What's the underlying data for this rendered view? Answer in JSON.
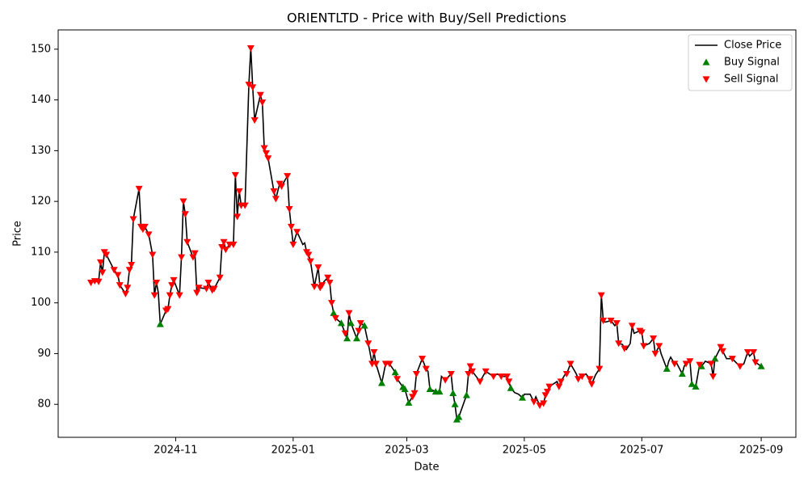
{
  "chart_data": {
    "type": "line",
    "title": "ORIENTLTD - Price with Buy/Sell Predictions",
    "x_label": "Date",
    "y_label": "Price",
    "xlim": [
      19967,
      20350
    ],
    "xticks": [
      {
        "value": 20028,
        "label": "2024-11"
      },
      {
        "value": 20089,
        "label": "2025-01"
      },
      {
        "value": 20148,
        "label": "2025-03"
      },
      {
        "value": 20209,
        "label": "2025-05"
      },
      {
        "value": 20270,
        "label": "2025-07"
      },
      {
        "value": 20332,
        "label": "2025-09"
      }
    ],
    "ylim": [
      73.5,
      153.8
    ],
    "yticks": [
      80,
      90,
      100,
      110,
      120,
      130,
      140,
      150
    ],
    "grid": false,
    "legend": "upper right",
    "series": [
      {
        "name": "Close Price",
        "type": "line",
        "color": "#000000",
        "x": [
          19984,
          19986,
          19988,
          19989,
          19990,
          19991,
          19992,
          19996,
          19998,
          19999,
          20002,
          20003,
          20004,
          20005,
          20006,
          20009,
          20010,
          20011,
          20012,
          20014,
          20016,
          20017,
          20018,
          20019,
          20020,
          20023,
          20024,
          20025,
          20026,
          20027,
          20030,
          20031,
          20032,
          20033,
          20034,
          20037,
          20038,
          20039,
          20040,
          20044,
          20045,
          20047,
          20048,
          20051,
          20052,
          20053,
          20054,
          20056,
          20057,
          20058,
          20059,
          20060,
          20061,
          20062,
          20064,
          20066,
          20067,
          20068,
          20069,
          20072,
          20073,
          20074,
          20075,
          20076,
          20079,
          20080,
          20082,
          20083,
          20086,
          20087,
          20088,
          20089,
          20091,
          20094,
          20095,
          20096,
          20097,
          20098,
          20100,
          20102,
          20103,
          20104,
          20105,
          20107,
          20108,
          20109,
          20110,
          20111,
          20114,
          20116,
          20117,
          20118,
          20119,
          20122,
          20123,
          20124,
          20126,
          20128,
          20130,
          20131,
          20132,
          20135,
          20137,
          20139,
          20142,
          20143,
          20146,
          20147,
          20149,
          20151,
          20152,
          20153,
          20156,
          20158,
          20159,
          20160,
          20163,
          20165,
          20166,
          20168,
          20171,
          20172,
          20173,
          20174,
          20175,
          20179,
          20180,
          20181,
          20182,
          20185,
          20186,
          20189,
          20193,
          20195,
          20197,
          20200,
          20201,
          20202,
          20204,
          20206,
          20208,
          20209,
          20212,
          20214,
          20215,
          20217,
          20219,
          20220,
          20221,
          20222,
          20226,
          20227,
          20228,
          20230,
          20231,
          20233,
          20236,
          20237,
          20239,
          20241,
          20243,
          20244,
          20246,
          20248,
          20249,
          20250,
          20251,
          20254,
          20256,
          20257,
          20258,
          20260,
          20261,
          20262,
          20264,
          20265,
          20266,
          20269,
          20270,
          20271,
          20274,
          20276,
          20277,
          20279,
          20280,
          20283,
          20284,
          20285,
          20287,
          20288,
          20291,
          20292,
          20293,
          20295,
          20296,
          20298,
          20300,
          20301,
          20303,
          20306,
          20307,
          20308,
          20311,
          20312,
          20314,
          20317,
          20319,
          20321,
          20323,
          20325,
          20326,
          20328,
          20329,
          20332
        ],
        "values": [
          104.0,
          104.3,
          104.2,
          108,
          106,
          110,
          109.5,
          106.5,
          105.5,
          103.5,
          101.8,
          103,
          106.5,
          107.5,
          116.5,
          122.5,
          115,
          114.5,
          115,
          113.5,
          109.5,
          101.5,
          104,
          102,
          95.8,
          98.5,
          98.8,
          101.5,
          103.5,
          104.5,
          101.5,
          109,
          120,
          117.5,
          112,
          109,
          109.8,
          102,
          103,
          102.8,
          104,
          102.5,
          102.8,
          105,
          111,
          112,
          110.5,
          111.5,
          111.5,
          111.5,
          125.2,
          117,
          122,
          119.2,
          119.2,
          143,
          150.2,
          142.5,
          136,
          141,
          139.5,
          130.5,
          129.5,
          128.5,
          122,
          120.5,
          123.5,
          123,
          125,
          118.5,
          115,
          111.5,
          114,
          111.5,
          111.8,
          110,
          109.5,
          108.2,
          103.2,
          107,
          103,
          103.5,
          104.2,
          105,
          104,
          100,
          98,
          97,
          96,
          94,
          93,
          98,
          96,
          93,
          94.5,
          96,
          95.5,
          92,
          88,
          90.3,
          88,
          84.2,
          88,
          88,
          86.3,
          85,
          83.4,
          83,
          80.3,
          81.5,
          82.2,
          86,
          89,
          87,
          86.5,
          83,
          82.5,
          82.5,
          85.5,
          84.8,
          86,
          82.2,
          80,
          77,
          77.5,
          81.8,
          86,
          87.5,
          86.5,
          85,
          84.5,
          86.5,
          85.5,
          86,
          85.5,
          85.5,
          84.5,
          83.2,
          82.3,
          82,
          81.3,
          82,
          82,
          80.5,
          81.5,
          79.8,
          80.2,
          81.8,
          82.5,
          83.5,
          84.5,
          83.5,
          84.5,
          85.8,
          86,
          88,
          86,
          85,
          85.5,
          86,
          85,
          84,
          85.8,
          87,
          101.5,
          96.5,
          96.2,
          96.5,
          95.5,
          96,
          92,
          91.8,
          91,
          90.8,
          92,
          95.5,
          94,
          94.5,
          94.2,
          91.5,
          92,
          93,
          90,
          91.5,
          90,
          87,
          88.5,
          89.3,
          88,
          88.2,
          86,
          87.5,
          88,
          88.5,
          84,
          83.5,
          87.8,
          87.5,
          88.5,
          88,
          85.5,
          89,
          91.3,
          90.5,
          89,
          89,
          88.2,
          87.5,
          88,
          90.3,
          89.5,
          90.3,
          88.3,
          87.5
        ]
      },
      {
        "name": "Buy Signal",
        "type": "scatter",
        "marker": "triangle-up",
        "color": "#008000",
        "x": [
          20020,
          20110,
          20114,
          20117,
          20119,
          20122,
          20126,
          20135,
          20142,
          20146,
          20147,
          20149,
          20160,
          20163,
          20165,
          20172,
          20173,
          20174,
          20175,
          20179,
          20202,
          20208,
          20283,
          20291,
          20296,
          20298,
          20301,
          20308,
          20332
        ],
        "values": [
          95.8,
          98,
          96,
          93,
          96,
          93,
          95.5,
          84.2,
          86.3,
          83.4,
          83,
          80.3,
          83,
          82.5,
          82.5,
          82.2,
          80,
          77,
          77.5,
          81.8,
          83.2,
          81.3,
          87,
          86,
          84,
          83.5,
          87.5,
          89,
          87.5
        ]
      },
      {
        "name": "Sell Signal",
        "type": "scatter",
        "marker": "triangle-down",
        "color": "#ff0000",
        "x": [
          19984,
          19986,
          19988,
          19989,
          19990,
          19991,
          19992,
          19996,
          19998,
          19999,
          20002,
          20003,
          20004,
          20005,
          20006,
          20009,
          20010,
          20011,
          20012,
          20014,
          20016,
          20017,
          20018,
          20023,
          20024,
          20025,
          20026,
          20027,
          20030,
          20031,
          20032,
          20033,
          20034,
          20037,
          20038,
          20039,
          20040,
          20044,
          20045,
          20047,
          20048,
          20051,
          20052,
          20053,
          20054,
          20056,
          20058,
          20059,
          20060,
          20061,
          20062,
          20064,
          20066,
          20067,
          20068,
          20069,
          20072,
          20073,
          20074,
          20075,
          20076,
          20079,
          20080,
          20082,
          20083,
          20086,
          20087,
          20088,
          20089,
          20091,
          20096,
          20097,
          20098,
          20100,
          20102,
          20103,
          20104,
          20107,
          20108,
          20109,
          20111,
          20116,
          20118,
          20123,
          20124,
          20128,
          20130,
          20131,
          20132,
          20137,
          20139,
          20143,
          20151,
          20152,
          20153,
          20156,
          20158,
          20168,
          20171,
          20180,
          20181,
          20182,
          20186,
          20189,
          20193,
          20197,
          20200,
          20201,
          20214,
          20217,
          20219,
          20220,
          20221,
          20222,
          20227,
          20228,
          20231,
          20233,
          20237,
          20239,
          20243,
          20244,
          20248,
          20249,
          20250,
          20254,
          20257,
          20258,
          20261,
          20265,
          20269,
          20270,
          20271,
          20276,
          20277,
          20279,
          20287,
          20293,
          20295,
          20300,
          20306,
          20307,
          20311,
          20312,
          20317,
          20321,
          20325,
          20328,
          20329
        ],
        "values": [
          104.0,
          104.3,
          104.2,
          108,
          106,
          110,
          109.5,
          106.5,
          105.5,
          103.5,
          101.8,
          103,
          106.5,
          107.5,
          116.5,
          122.5,
          115,
          114.5,
          115,
          113.5,
          109.5,
          101.5,
          104,
          98.5,
          98.8,
          101.5,
          103.5,
          104.5,
          101.5,
          109,
          120,
          117.5,
          112,
          109,
          109.8,
          102,
          103,
          102.8,
          104,
          102.5,
          102.8,
          105,
          111,
          112,
          110.5,
          111.5,
          111.5,
          125.2,
          117,
          122,
          119.2,
          119.2,
          143,
          150.2,
          142.5,
          136,
          141,
          139.5,
          130.5,
          129.5,
          128.5,
          122,
          120.5,
          123.5,
          123,
          125,
          118.5,
          115,
          111.5,
          114,
          110,
          109.5,
          108.2,
          103.2,
          107,
          103,
          103.5,
          105,
          104,
          100,
          97,
          94,
          98,
          94.5,
          96,
          92,
          88,
          90.3,
          88,
          88,
          88,
          85,
          81.5,
          82.2,
          86,
          89,
          87,
          84.8,
          86,
          86,
          87.5,
          86.5,
          84.5,
          86.5,
          85.5,
          85.5,
          85.5,
          84.5,
          80.5,
          79.8,
          80.2,
          81.8,
          82.5,
          83.5,
          83.5,
          84.5,
          86,
          88,
          85,
          85.5,
          85,
          84,
          87,
          101.5,
          96.5,
          96.5,
          96,
          92,
          91,
          95.5,
          94.5,
          94.2,
          91.5,
          93,
          90,
          91.5,
          88,
          88,
          88.5,
          87.8,
          88,
          85.5,
          91.3,
          90.5,
          89,
          87.5,
          90.3,
          90.3,
          88.3
        ]
      }
    ]
  }
}
